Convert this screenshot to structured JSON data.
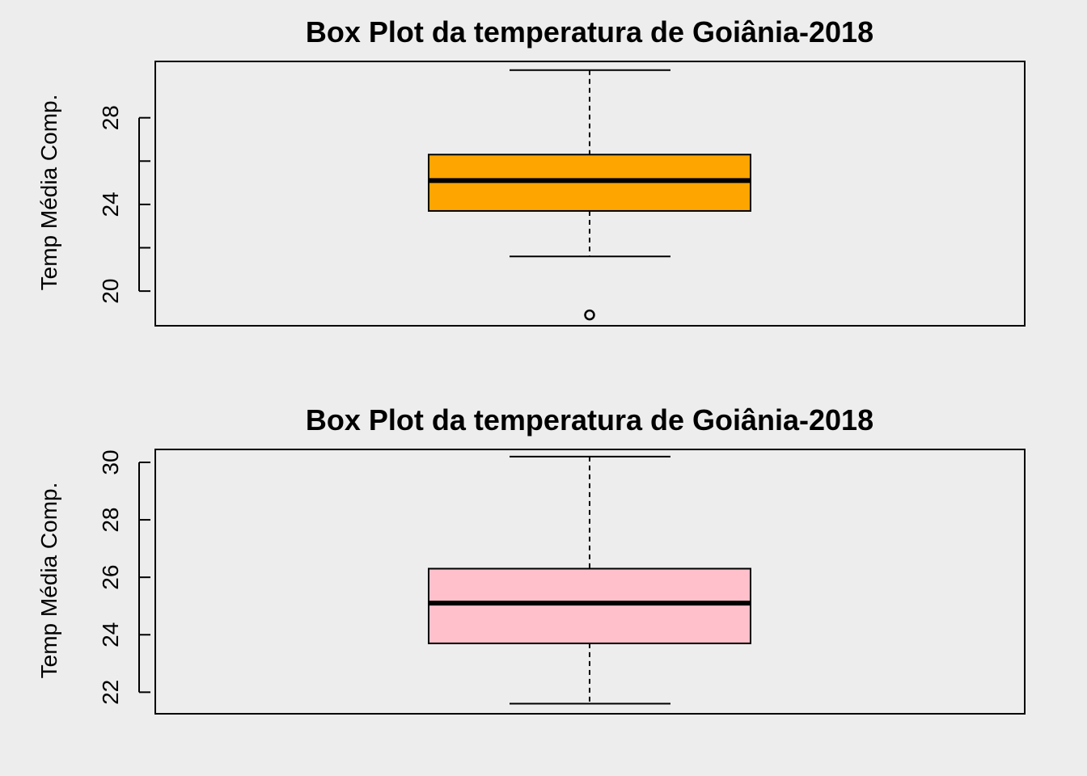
{
  "colors": {
    "background": "#ededed",
    "box1_fill": "#ffa500",
    "box2_fill": "#ffc0cb",
    "stroke": "#000000"
  },
  "chart_data": [
    {
      "type": "box",
      "title": "Box Plot da temperatura de Goiânia-2018",
      "xlabel": "",
      "ylabel": "Temp Média Comp.",
      "ylim": [
        18.4,
        30.6
      ],
      "yticks": [
        20,
        22,
        24,
        26,
        28
      ],
      "ytick_labels": [
        "20",
        "",
        "24",
        "",
        "28"
      ],
      "box": {
        "fill": "#ffa500",
        "whisker_low": 21.6,
        "q1": 23.7,
        "median": 25.1,
        "q3": 26.3,
        "whisker_high": 30.2,
        "outliers": [
          18.9
        ]
      }
    },
    {
      "type": "box",
      "title": "Box Plot da temperatura de Goiânia-2018",
      "xlabel": "",
      "ylabel": "Temp Média Comp.",
      "ylim": [
        21.25,
        30.45
      ],
      "yticks": [
        22,
        24,
        26,
        28,
        30
      ],
      "ytick_labels": [
        "22",
        "24",
        "26",
        "28",
        "30"
      ],
      "box": {
        "fill": "#ffc0cb",
        "whisker_low": 21.6,
        "q1": 23.7,
        "median": 25.1,
        "q3": 26.3,
        "whisker_high": 30.2,
        "outliers": []
      }
    }
  ]
}
